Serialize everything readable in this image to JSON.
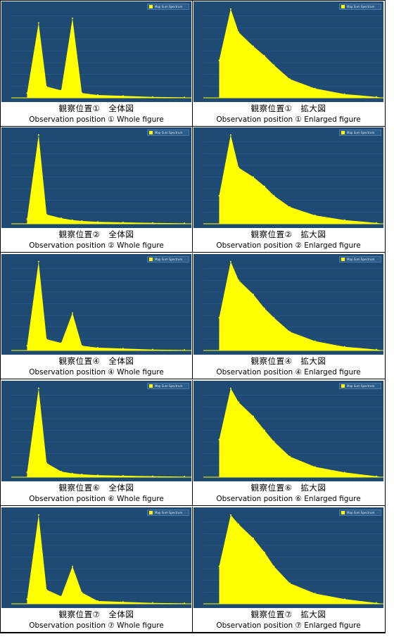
{
  "legend_label": "Map Sum Spectrum",
  "colors": {
    "plot_bg": "#1e4a73",
    "spectrum": "#ffff00",
    "label_box": "#ffff66"
  },
  "panels": [
    {
      "caption_ja": "観察位置①　全体図",
      "caption_en": "Observation position ① Whole figure"
    },
    {
      "caption_ja": "観察位置①　拡大図",
      "caption_en": "Observation position ① Enlarged figure"
    },
    {
      "caption_ja": "観察位置②　全体図",
      "caption_en": "Observation position ② Whole figure"
    },
    {
      "caption_ja": "観察位置②　拡大図",
      "caption_en": "Observation position ② Enlarged figure"
    },
    {
      "caption_ja": "観察位置④　全体図",
      "caption_en": "Observation position ④ Whole figure"
    },
    {
      "caption_ja": "観察位置④　拡大図",
      "caption_en": "Observation position ④ Enlarged figure"
    },
    {
      "caption_ja": "観察位置⑥　全体図",
      "caption_en": "Observation position ⑥ Whole figure"
    },
    {
      "caption_ja": "観察位置⑥　拡大図",
      "caption_en": "Observation position ⑥ Enlarged figure"
    },
    {
      "caption_ja": "観察位置⑦　全体図",
      "caption_en": "Observation position ⑦ Whole figure"
    },
    {
      "caption_ja": "観察位置⑦　拡大図",
      "caption_en": "Observation position ⑦ Enlarged figure"
    }
  ],
  "chart_data": [
    {
      "type": "area",
      "view": "whole",
      "x": [
        0.1,
        0.3,
        0.5,
        1.0,
        1.5,
        2.0,
        3.0,
        5.0,
        8.0,
        12.0
      ],
      "y": [
        5,
        80,
        12,
        8,
        85,
        5,
        3,
        2,
        1,
        0.5
      ]
    },
    {
      "type": "area",
      "view": "enlarged",
      "x": [
        0.1,
        0.3,
        0.5,
        1.0,
        1.5,
        2.0,
        3.0,
        5.0,
        8.0,
        12.0
      ],
      "y": [
        40,
        95,
        70,
        55,
        45,
        35,
        20,
        10,
        4,
        1
      ]
    },
    {
      "type": "area",
      "view": "whole",
      "x": [
        0.1,
        0.3,
        0.5,
        1.0,
        1.5,
        2.0,
        3.0,
        5.0,
        8.0,
        12.0
      ],
      "y": [
        5,
        95,
        10,
        6,
        4,
        3,
        2,
        1.5,
        1,
        0.5
      ]
    },
    {
      "type": "area",
      "view": "enlarged",
      "x": [
        0.1,
        0.3,
        0.5,
        1.0,
        1.5,
        2.0,
        3.0,
        5.0,
        8.0,
        12.0
      ],
      "y": [
        30,
        95,
        60,
        50,
        40,
        30,
        18,
        9,
        4,
        1
      ]
    },
    {
      "type": "area",
      "view": "whole",
      "x": [
        0.1,
        0.3,
        0.5,
        1.0,
        1.5,
        2.0,
        3.0,
        5.0,
        8.0,
        12.0
      ],
      "y": [
        5,
        95,
        12,
        8,
        40,
        5,
        3,
        2,
        1,
        0.5
      ]
    },
    {
      "type": "area",
      "view": "enlarged",
      "x": [
        0.1,
        0.3,
        0.5,
        1.0,
        1.5,
        2.0,
        3.0,
        5.0,
        8.0,
        12.0
      ],
      "y": [
        35,
        95,
        75,
        60,
        45,
        35,
        20,
        10,
        4,
        1
      ]
    },
    {
      "type": "area",
      "view": "whole",
      "x": [
        0.1,
        0.3,
        0.5,
        1.0,
        1.5,
        2.0,
        3.0,
        5.0,
        8.0,
        12.0
      ],
      "y": [
        5,
        95,
        15,
        6,
        4,
        3,
        2,
        1.5,
        1,
        0.5
      ]
    },
    {
      "type": "area",
      "view": "enlarged",
      "x": [
        0.1,
        0.3,
        0.5,
        1.0,
        1.5,
        2.0,
        3.0,
        5.0,
        8.0,
        12.0
      ],
      "y": [
        40,
        95,
        80,
        65,
        50,
        38,
        22,
        11,
        5,
        1
      ]
    },
    {
      "type": "area",
      "view": "whole",
      "x": [
        0.1,
        0.3,
        0.5,
        1.0,
        1.5,
        2.0,
        3.0,
        5.0,
        8.0,
        12.0
      ],
      "y": [
        5,
        95,
        15,
        8,
        40,
        12,
        3,
        2,
        1,
        0.5
      ]
    },
    {
      "type": "area",
      "view": "enlarged",
      "x": [
        0.1,
        0.3,
        0.5,
        1.0,
        1.5,
        2.0,
        3.0,
        5.0,
        8.0,
        12.0
      ],
      "y": [
        40,
        95,
        85,
        70,
        55,
        40,
        22,
        11,
        5,
        1
      ]
    }
  ]
}
